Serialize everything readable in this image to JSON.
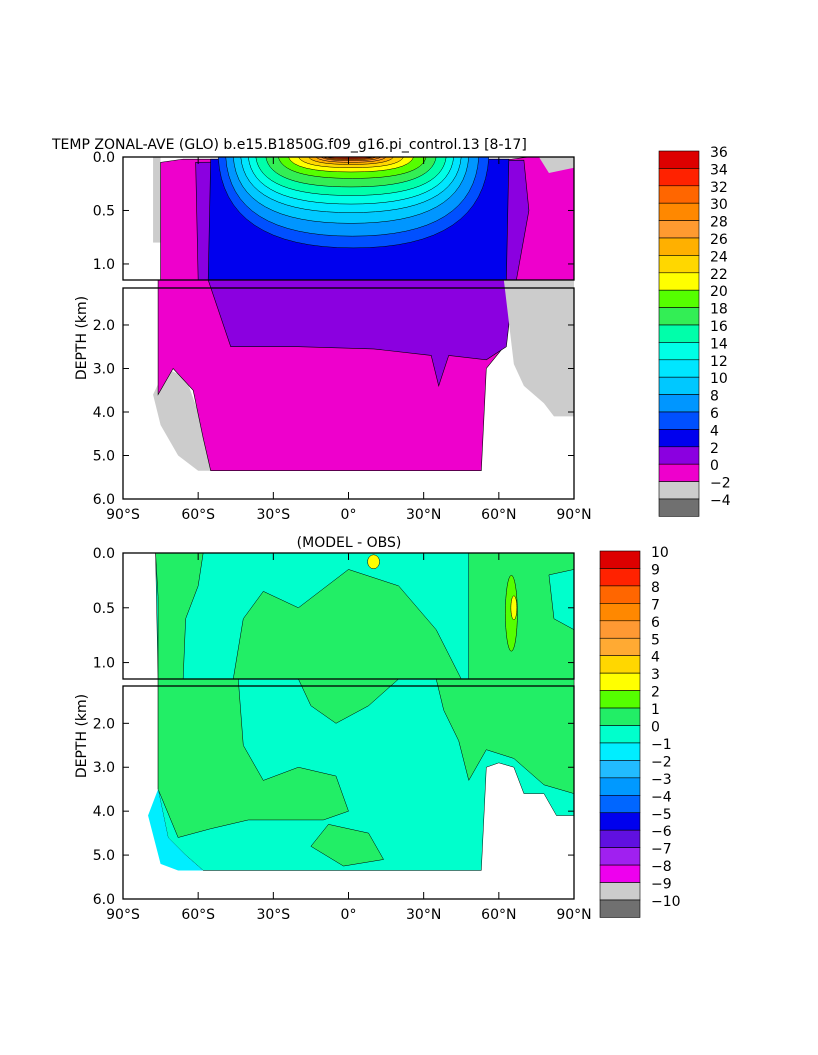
{
  "chart_data": [
    {
      "type": "heatmap",
      "title": "TEMP ZONAL-AVE (GLO) b.e15.B1850G.f09_g16.pi_control.13 [8-17]",
      "xlabel": "",
      "ylabel": "DEPTH (km)",
      "x_ticks": [
        "90°S",
        "60°S",
        "30°S",
        "0°",
        "30°N",
        "60°N",
        "90°N"
      ],
      "upper_y_ticks": [
        "0.0",
        "0.5",
        "1.0"
      ],
      "lower_y_ticks": [
        "2.0",
        "3.0",
        "4.0",
        "5.0",
        "6.0"
      ],
      "xlim": [
        -90,
        90
      ],
      "ylim_upper_km": [
        0,
        1.15
      ],
      "ylim_lower_km": [
        1.15,
        6.0
      ],
      "colorbar_levels": [
        -4,
        -2,
        0,
        2,
        4,
        6,
        8,
        10,
        12,
        14,
        16,
        18,
        20,
        22,
        24,
        26,
        28,
        30,
        32,
        34,
        36
      ],
      "colorbar_labels": [
        "-4",
        "-2",
        "0",
        "2",
        "4",
        "6",
        "8",
        "10",
        "12",
        "14",
        "16",
        "18",
        "20",
        "22",
        "24",
        "26",
        "28",
        "30",
        "32",
        "34",
        "36"
      ],
      "colorbar_colors": [
        "#707070",
        "#cccccc",
        "#ee00cc",
        "#8b00e0",
        "#0000ee",
        "#0050ff",
        "#0096ff",
        "#00c8ff",
        "#00e6ff",
        "#00ffe6",
        "#00ffaa",
        "#33ee55",
        "#55ff00",
        "#ffff00",
        "#ffd700",
        "#ffb000",
        "#ff9a30",
        "#ff8800",
        "#ff6600",
        "#ff2200",
        "#dd0000"
      ]
    },
    {
      "type": "heatmap",
      "title": "(MODEL - OBS)",
      "xlabel": "",
      "ylabel": "DEPTH (km)",
      "x_ticks": [
        "90°S",
        "60°S",
        "30°S",
        "0°",
        "30°N",
        "60°N",
        "90°N"
      ],
      "upper_y_ticks": [
        "0.0",
        "0.5",
        "1.0"
      ],
      "lower_y_ticks": [
        "2.0",
        "3.0",
        "4.0",
        "5.0",
        "6.0"
      ],
      "xlim": [
        -90,
        90
      ],
      "ylim_upper_km": [
        0,
        1.15
      ],
      "ylim_lower_km": [
        1.15,
        6.0
      ],
      "colorbar_levels": [
        -10,
        -9,
        -8,
        -7,
        -6,
        -5,
        -4,
        -3,
        -2,
        -1,
        0,
        1,
        2,
        3,
        4,
        5,
        6,
        7,
        8,
        9,
        10
      ],
      "colorbar_labels": [
        "-10",
        "-9",
        "-8",
        "-7",
        "-6",
        "-5",
        "-4",
        "-3",
        "-2",
        "-1",
        "0",
        "1",
        "2",
        "3",
        "4",
        "5",
        "6",
        "7",
        "8",
        "9",
        "10"
      ],
      "colorbar_colors": [
        "#707070",
        "#cccccc",
        "#ee00ee",
        "#a020f0",
        "#6010e0",
        "#0000ee",
        "#0066ff",
        "#0099ff",
        "#22bbff",
        "#00eeff",
        "#00ffcc",
        "#22ee66",
        "#55ff00",
        "#ffff00",
        "#ffd700",
        "#ffaa33",
        "#ff9933",
        "#ff8800",
        "#ff6600",
        "#ff2200",
        "#dd0000"
      ]
    }
  ]
}
